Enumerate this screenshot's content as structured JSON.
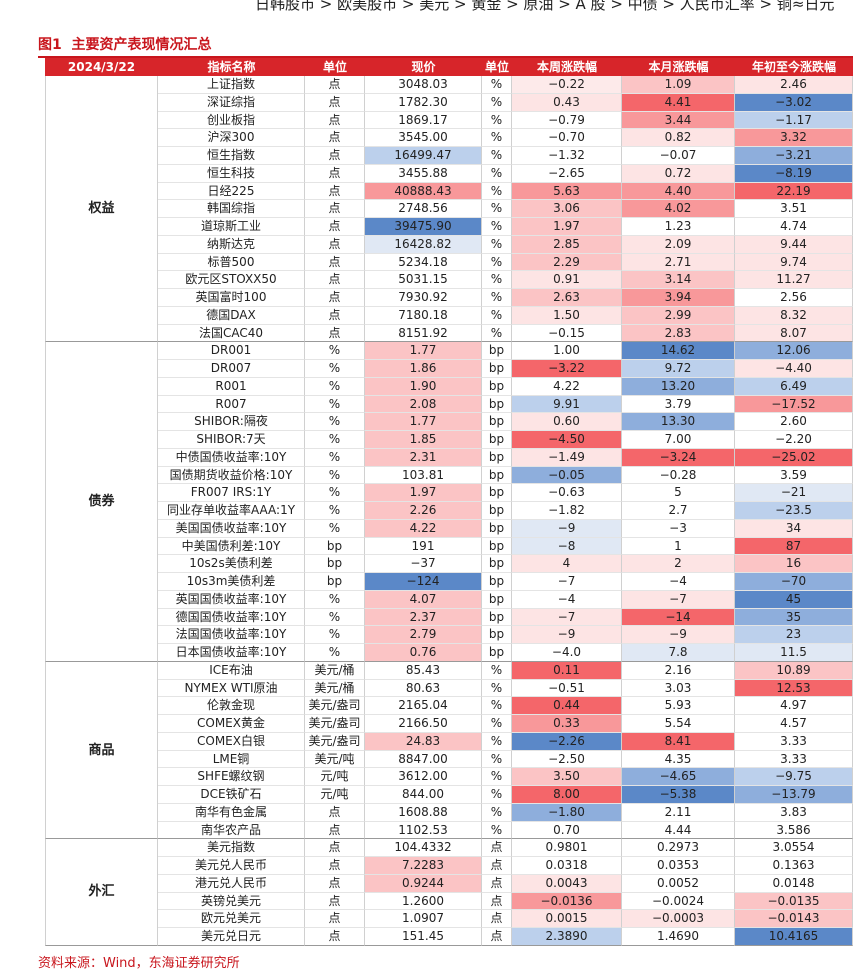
{
  "breadcrumb": "日韩股市 > 欧美股市 > 美元 > 黄金 > 原油 > A 股 > 中债 > 人民币汇率 > 铜≈日元",
  "title": "图1  主要资产表现情况汇总",
  "source": "资料来源：Wind，东海证券研究所",
  "table": {
    "header": [
      "2024/3/22",
      "指标名称",
      "单位",
      "现价",
      "单位",
      "本周涨跌幅",
      "本月涨跌幅",
      "年初至今涨跌幅"
    ],
    "groups": [
      {
        "name": "权益",
        "rows": [
          {
            "cells": [
              "上证指数",
              "点",
              "3048.03",
              "%",
              "−0.22",
              "1.09",
              "2.46"
            ],
            "fills": [
              "#ffffff",
              "#fdeaea",
              "#fbc4c5",
              "#fde4e4"
            ]
          },
          {
            "cells": [
              "深证综指",
              "点",
              "1782.30",
              "%",
              "0.43",
              "4.41",
              "−3.02"
            ],
            "fills": [
              "#ffffff",
              "#fde4e4",
              "#f4666a",
              "#5b88c8"
            ]
          },
          {
            "cells": [
              "创业板指",
              "点",
              "1869.17",
              "%",
              "−0.79",
              "3.44",
              "−1.17"
            ],
            "fills": [
              "#ffffff",
              "#ffffff",
              "#f8989a",
              "#bcd0ec"
            ]
          },
          {
            "cells": [
              "沪深300",
              "点",
              "3545.00",
              "%",
              "−0.70",
              "0.82",
              "3.32"
            ],
            "fills": [
              "#ffffff",
              "#ffffff",
              "#fde4e4",
              "#f8989a"
            ]
          },
          {
            "cells": [
              "恒生指数",
              "点",
              "16499.47",
              "%",
              "−1.32",
              "−0.07",
              "−3.21"
            ],
            "fills": [
              "#bcd0ec",
              "#ffffff",
              "#ffffff",
              "#8eaedc"
            ]
          },
          {
            "cells": [
              "恒生科技",
              "点",
              "3455.88",
              "%",
              "−2.65",
              "0.72",
              "−8.19"
            ],
            "fills": [
              "#ffffff",
              "#ffffff",
              "#fde4e4",
              "#5b88c8"
            ]
          },
          {
            "cells": [
              "日经225",
              "点",
              "40888.43",
              "%",
              "5.63",
              "4.40",
              "22.19"
            ],
            "fills": [
              "#f8989a",
              "#f8989a",
              "#f8989a",
              "#f4666a"
            ]
          },
          {
            "cells": [
              "韩国综指",
              "点",
              "2748.56",
              "%",
              "3.06",
              "4.02",
              "3.51"
            ],
            "fills": [
              "#ffffff",
              "#fbc4c5",
              "#f8989a",
              "#ffffff"
            ]
          },
          {
            "cells": [
              "道琼斯工业",
              "点",
              "39475.90",
              "%",
              "1.97",
              "1.23",
              "4.74"
            ],
            "fills": [
              "#5b88c8",
              "#fbc4c5",
              "#ffffff",
              "#ffffff"
            ]
          },
          {
            "cells": [
              "纳斯达克",
              "点",
              "16428.82",
              "%",
              "2.85",
              "2.09",
              "9.44"
            ],
            "fills": [
              "#e0e8f4",
              "#fbc4c5",
              "#fde4e4",
              "#fde4e4"
            ]
          },
          {
            "cells": [
              "标普500",
              "点",
              "5234.18",
              "%",
              "2.29",
              "2.71",
              "9.74"
            ],
            "fills": [
              "#ffffff",
              "#fbc4c5",
              "#fde4e4",
              "#fde4e4"
            ]
          },
          {
            "cells": [
              "欧元区STOXX50",
              "点",
              "5031.15",
              "%",
              "0.91",
              "3.14",
              "11.27"
            ],
            "fills": [
              "#ffffff",
              "#fde4e4",
              "#fbc4c5",
              "#fde4e4"
            ]
          },
          {
            "cells": [
              "英国富时100",
              "点",
              "7930.92",
              "%",
              "2.63",
              "3.94",
              "2.56"
            ],
            "fills": [
              "#ffffff",
              "#fbc4c5",
              "#f8989a",
              "#ffffff"
            ]
          },
          {
            "cells": [
              "德国DAX",
              "点",
              "7180.18",
              "%",
              "1.50",
              "2.99",
              "8.32"
            ],
            "fills": [
              "#ffffff",
              "#fde4e4",
              "#fbc4c5",
              "#fde4e4"
            ]
          },
          {
            "cells": [
              "法国CAC40",
              "点",
              "8151.92",
              "%",
              "−0.15",
              "2.83",
              "8.07"
            ],
            "fills": [
              "#ffffff",
              "#ffffff",
              "#fbc4c5",
              "#fde4e4"
            ]
          }
        ]
      },
      {
        "name": "债券",
        "rows": [
          {
            "cells": [
              "DR001",
              "%",
              "1.77",
              "bp",
              "1.00",
              "14.62",
              "12.06"
            ],
            "fills": [
              "#fbc4c5",
              "#ffffff",
              "#5b88c8",
              "#8eaedc"
            ]
          },
          {
            "cells": [
              "DR007",
              "%",
              "1.86",
              "bp",
              "−3.22",
              "9.72",
              "−4.40"
            ],
            "fills": [
              "#fbc4c5",
              "#f4666a",
              "#bcd0ec",
              "#fde4e4"
            ]
          },
          {
            "cells": [
              "R001",
              "%",
              "1.90",
              "bp",
              "4.22",
              "13.20",
              "6.49"
            ],
            "fills": [
              "#fbc4c5",
              "#ffffff",
              "#8eaedc",
              "#bcd0ec"
            ]
          },
          {
            "cells": [
              "R007",
              "%",
              "2.08",
              "bp",
              "9.91",
              "3.79",
              "−17.52"
            ],
            "fills": [
              "#fbc4c5",
              "#bcd0ec",
              "#ffffff",
              "#f8989a"
            ]
          },
          {
            "cells": [
              "SHIBOR:隔夜",
              "%",
              "1.77",
              "bp",
              "0.60",
              "13.30",
              "2.60"
            ],
            "fills": [
              "#fbc4c5",
              "#fde4e4",
              "#8eaedc",
              "#ffffff"
            ]
          },
          {
            "cells": [
              "SHIBOR:7天",
              "%",
              "1.85",
              "bp",
              "−4.50",
              "7.00",
              "−2.20"
            ],
            "fills": [
              "#fbc4c5",
              "#f4666a",
              "#ffffff",
              "#ffffff"
            ]
          },
          {
            "cells": [
              "中债国债收益率:10Y",
              "%",
              "2.31",
              "bp",
              "−1.49",
              "−3.24",
              "−25.02"
            ],
            "fills": [
              "#fbc4c5",
              "#fde4e4",
              "#f4666a",
              "#f4666a"
            ]
          },
          {
            "cells": [
              "国债期货收益价格:10Y",
              "%",
              "103.81",
              "bp",
              "−0.05",
              "−0.28",
              "3.59"
            ],
            "fills": [
              "#ffffff",
              "#8eaedc",
              "#ffffff",
              "#ffffff"
            ]
          },
          {
            "cells": [
              "FR007 IRS:1Y",
              "%",
              "1.97",
              "bp",
              "−0.63",
              "5",
              "−21"
            ],
            "fills": [
              "#fbc4c5",
              "#ffffff",
              "#ffffff",
              "#e0e8f4"
            ]
          },
          {
            "cells": [
              "同业存单收益率AAA:1Y",
              "%",
              "2.26",
              "bp",
              "−1.82",
              "2.7",
              "−23.5"
            ],
            "fills": [
              "#fbc4c5",
              "#ffffff",
              "#ffffff",
              "#bcd0ec"
            ]
          },
          {
            "cells": [
              "美国国债收益率:10Y",
              "%",
              "4.22",
              "bp",
              "−9",
              "−3",
              "34"
            ],
            "fills": [
              "#fbc4c5",
              "#e0e8f4",
              "#ffffff",
              "#fde4e4"
            ]
          },
          {
            "cells": [
              "中美国债利差:10Y",
              "bp",
              "191",
              "bp",
              "−8",
              "1",
              "87"
            ],
            "fills": [
              "#ffffff",
              "#e0e8f4",
              "#ffffff",
              "#f4666a"
            ]
          },
          {
            "cells": [
              "10s2s美债利差",
              "bp",
              "−37",
              "bp",
              "4",
              "2",
              "16"
            ],
            "fills": [
              "#ffffff",
              "#fde4e4",
              "#fde4e4",
              "#fbc4c5"
            ]
          },
          {
            "cells": [
              "10s3m美债利差",
              "bp",
              "−124",
              "bp",
              "−7",
              "−4",
              "−70"
            ],
            "fills": [
              "#5b88c8",
              "#ffffff",
              "#ffffff",
              "#8eaedc"
            ]
          },
          {
            "cells": [
              "英国国债收益率:10Y",
              "%",
              "4.07",
              "bp",
              "−4",
              "−7",
              "45"
            ],
            "fills": [
              "#fbc4c5",
              "#ffffff",
              "#fde4e4",
              "#5b88c8"
            ]
          },
          {
            "cells": [
              "德国国债收益率:10Y",
              "%",
              "2.37",
              "bp",
              "−7",
              "−14",
              "35"
            ],
            "fills": [
              "#fbc4c5",
              "#fde4e4",
              "#f4666a",
              "#8eaedc"
            ]
          },
          {
            "cells": [
              "法国国债收益率:10Y",
              "%",
              "2.79",
              "bp",
              "−9",
              "−9",
              "23"
            ],
            "fills": [
              "#fbc4c5",
              "#fde4e4",
              "#fde4e4",
              "#bcd0ec"
            ]
          },
          {
            "cells": [
              "日本国债收益率:10Y",
              "%",
              "0.76",
              "bp",
              "−4.0",
              "7.8",
              "11.5"
            ],
            "fills": [
              "#fbc4c5",
              "#ffffff",
              "#e0e8f4",
              "#e0e8f4"
            ]
          }
        ]
      },
      {
        "name": "商品",
        "rows": [
          {
            "cells": [
              "ICE布油",
              "美元/桶",
              "85.43",
              "%",
              "0.11",
              "2.16",
              "10.89"
            ],
            "fills": [
              "#ffffff",
              "#f4666a",
              "#ffffff",
              "#fbc4c5"
            ]
          },
          {
            "cells": [
              "NYMEX WTI原油",
              "美元/桶",
              "80.63",
              "%",
              "−0.51",
              "3.03",
              "12.53"
            ],
            "fills": [
              "#ffffff",
              "#ffffff",
              "#ffffff",
              "#f4666a"
            ]
          },
          {
            "cells": [
              "伦敦金现",
              "美元/盎司",
              "2165.04",
              "%",
              "0.44",
              "5.93",
              "4.97"
            ],
            "fills": [
              "#ffffff",
              "#f4666a",
              "#ffffff",
              "#ffffff"
            ]
          },
          {
            "cells": [
              "COMEX黄金",
              "美元/盎司",
              "2166.50",
              "%",
              "0.33",
              "5.54",
              "4.57"
            ],
            "fills": [
              "#ffffff",
              "#f8989a",
              "#ffffff",
              "#ffffff"
            ]
          },
          {
            "cells": [
              "COMEX白银",
              "美元/盎司",
              "24.83",
              "%",
              "−2.26",
              "8.41",
              "3.33"
            ],
            "fills": [
              "#fbc4c5",
              "#5b88c8",
              "#f4666a",
              "#ffffff"
            ]
          },
          {
            "cells": [
              "LME铜",
              "美元/吨",
              "8847.00",
              "%",
              "−2.50",
              "4.35",
              "3.33"
            ],
            "fills": [
              "#ffffff",
              "#ffffff",
              "#ffffff",
              "#ffffff"
            ]
          },
          {
            "cells": [
              "SHFE螺纹钢",
              "元/吨",
              "3612.00",
              "%",
              "3.50",
              "−4.65",
              "−9.75"
            ],
            "fills": [
              "#ffffff",
              "#fbc4c5",
              "#8eaedc",
              "#bcd0ec"
            ]
          },
          {
            "cells": [
              "DCE铁矿石",
              "元/吨",
              "844.00",
              "%",
              "8.00",
              "−5.38",
              "−13.79"
            ],
            "fills": [
              "#ffffff",
              "#f4666a",
              "#5b88c8",
              "#8eaedc"
            ]
          },
          {
            "cells": [
              "南华有色金属",
              "点",
              "1608.88",
              "%",
              "−1.80",
              "2.11",
              "3.83"
            ],
            "fills": [
              "#ffffff",
              "#8eaedc",
              "#ffffff",
              "#ffffff"
            ]
          },
          {
            "cells": [
              "南华农产品",
              "点",
              "1102.53",
              "%",
              "0.70",
              "4.44",
              "3.586"
            ],
            "fills": [
              "#ffffff",
              "#ffffff",
              "#ffffff",
              "#ffffff"
            ]
          }
        ]
      },
      {
        "name": "外汇",
        "rows": [
          {
            "cells": [
              "美元指数",
              "点",
              "104.4332",
              "点",
              "0.9801",
              "0.2973",
              "3.0554"
            ],
            "fills": [
              "#ffffff",
              "#ffffff",
              "#ffffff",
              "#ffffff"
            ]
          },
          {
            "cells": [
              "美元兑人民币",
              "点",
              "7.2283",
              "点",
              "0.0318",
              "0.0353",
              "0.1363"
            ],
            "fills": [
              "#fbc4c5",
              "#ffffff",
              "#ffffff",
              "#ffffff"
            ]
          },
          {
            "cells": [
              "港元兑人民币",
              "点",
              "0.9244",
              "点",
              "0.0043",
              "0.0052",
              "0.0148"
            ],
            "fills": [
              "#fbc4c5",
              "#fde4e4",
              "#ffffff",
              "#ffffff"
            ]
          },
          {
            "cells": [
              "英镑兑美元",
              "点",
              "1.2600",
              "点",
              "−0.0136",
              "−0.0024",
              "−0.0135"
            ],
            "fills": [
              "#ffffff",
              "#f8989a",
              "#ffffff",
              "#fbc4c5"
            ]
          },
          {
            "cells": [
              "欧元兑美元",
              "点",
              "1.0907",
              "点",
              "0.0015",
              "−0.0003",
              "−0.0143"
            ],
            "fills": [
              "#ffffff",
              "#fde4e4",
              "#fde4e4",
              "#fbc4c5"
            ]
          },
          {
            "cells": [
              "美元兑日元",
              "点",
              "151.45",
              "点",
              "2.3890",
              "1.4690",
              "10.4165"
            ],
            "fills": [
              "#ffffff",
              "#bcd0ec",
              "#ffffff",
              "#5b88c8"
            ]
          }
        ]
      }
    ]
  }
}
